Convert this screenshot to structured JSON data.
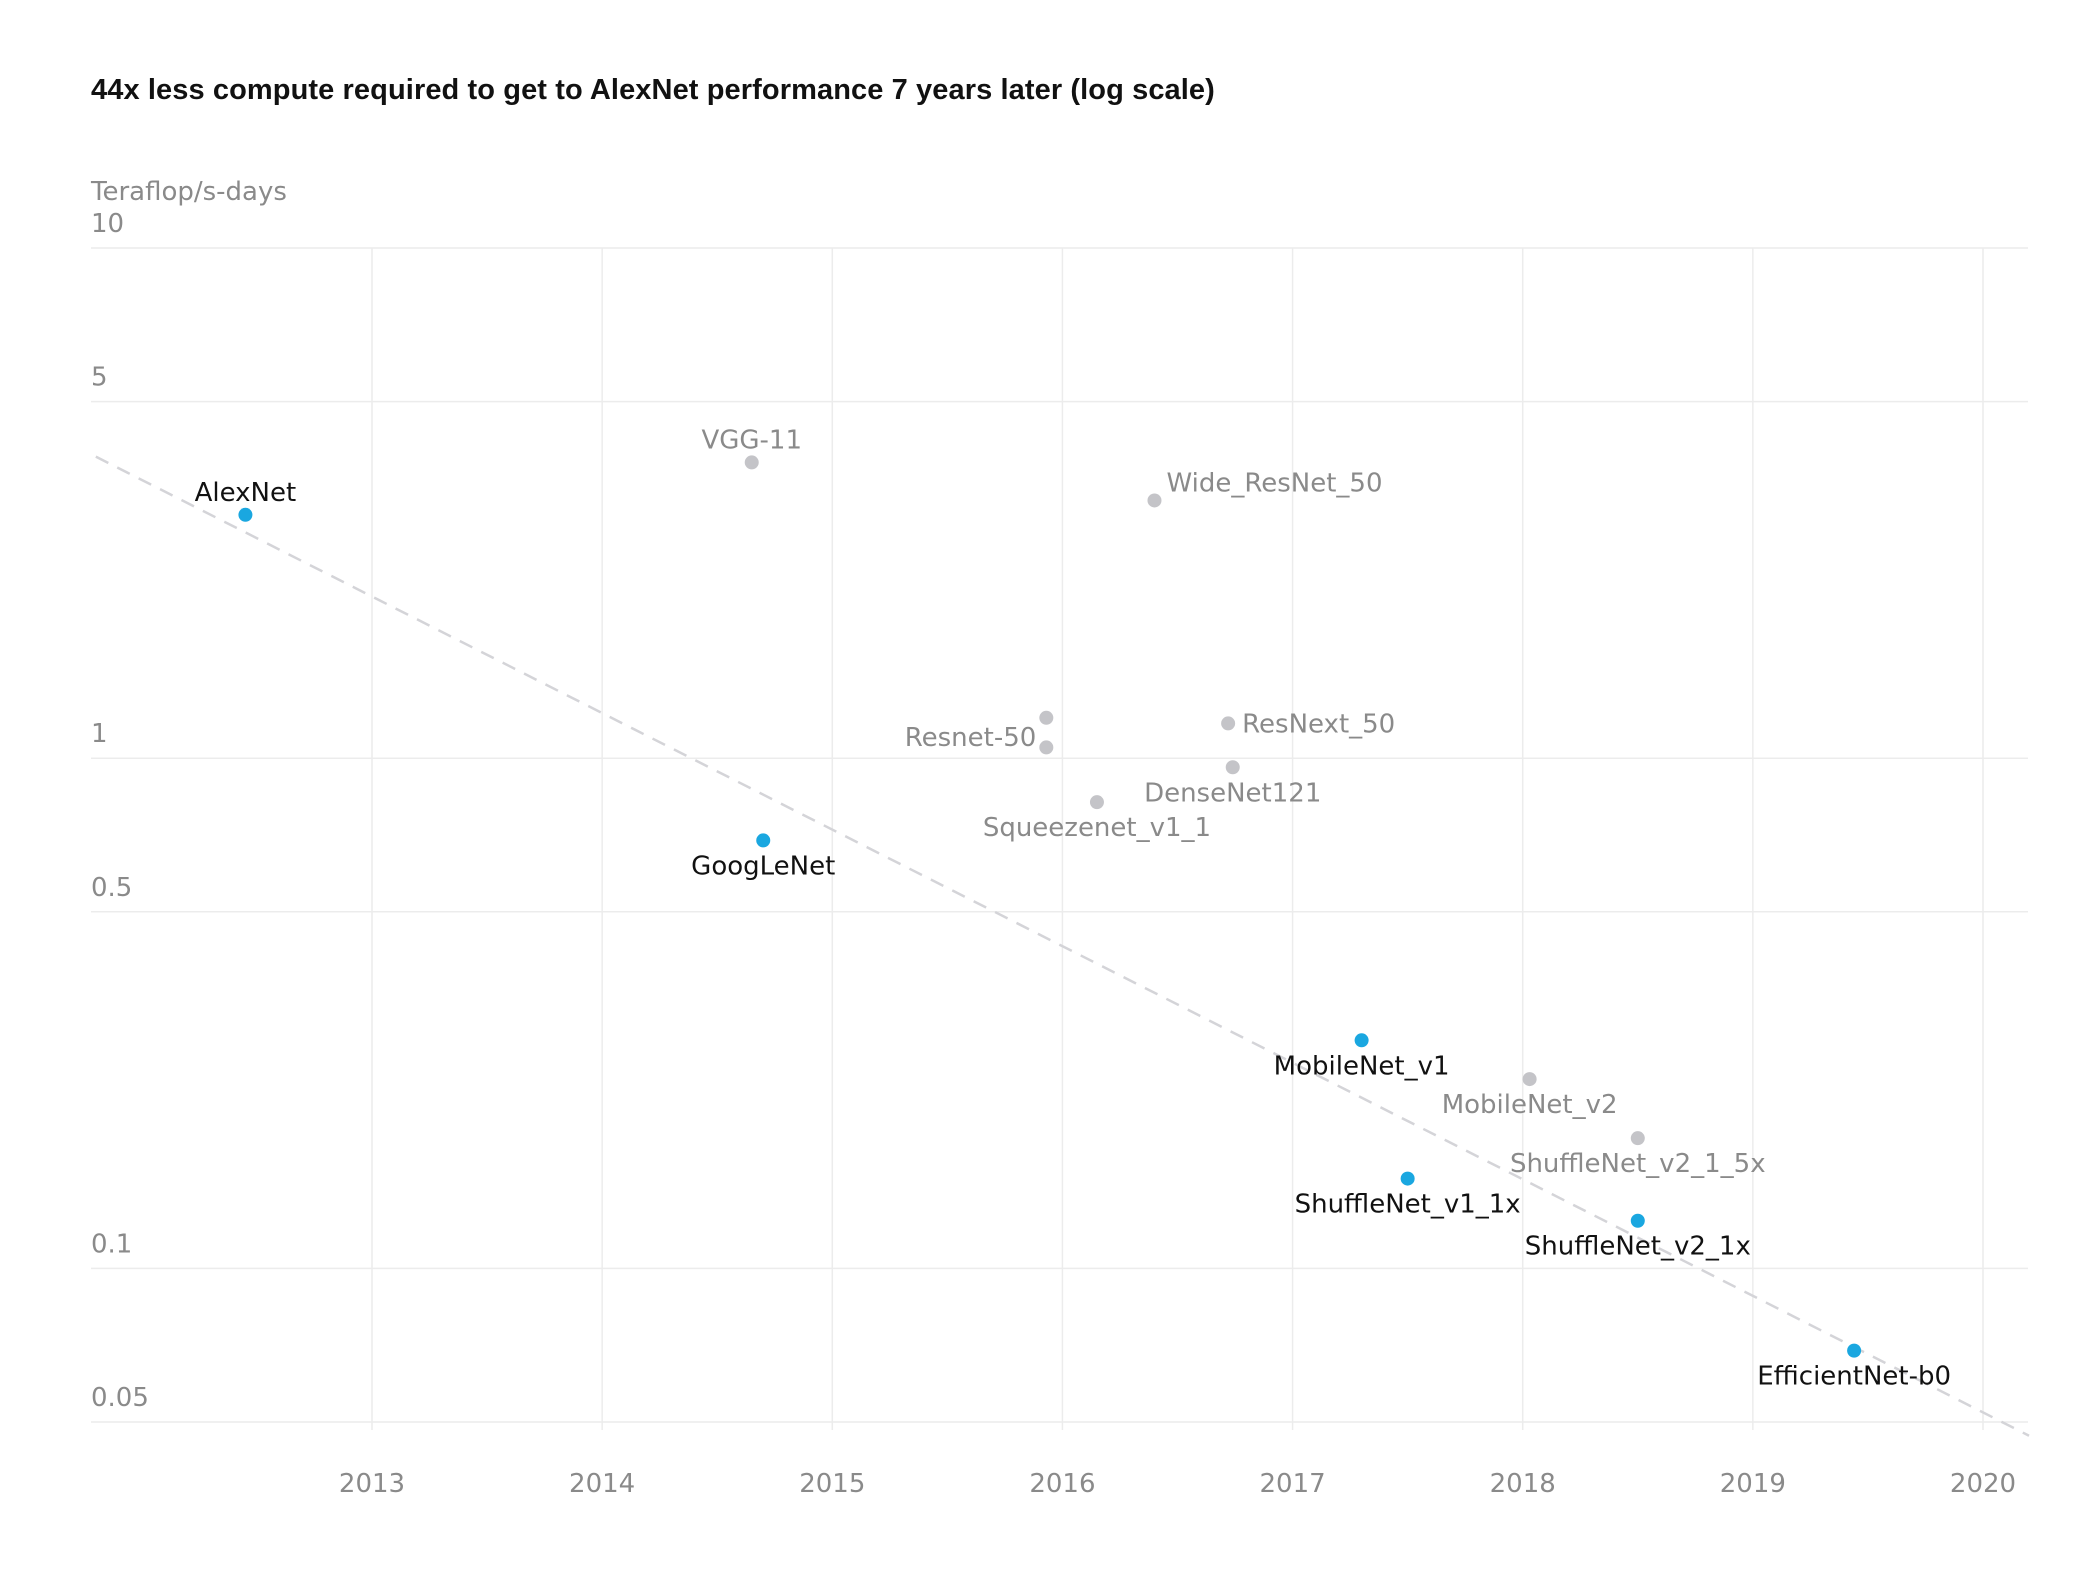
{
  "chart_data": {
    "type": "scatter",
    "title": "44x less compute required to get to AlexNet performance 7 years later (log scale)",
    "ylabel": "Teraflop/s-days",
    "xlabel": "",
    "y_scale": "log",
    "ylim": [
      0.045,
      10
    ],
    "xlim": [
      2011.8,
      2020.25
    ],
    "x_ticks": [
      2013,
      2014,
      2015,
      2016,
      2017,
      2018,
      2019,
      2020
    ],
    "x_tick_labels": [
      "2013",
      "2014",
      "2015",
      "2016",
      "2017",
      "2018",
      "2019",
      "2020"
    ],
    "y_ticks": [
      0.05,
      0.1,
      0.5,
      1,
      5,
      10
    ],
    "y_tick_labels": [
      "0.05",
      "0.1",
      "0.5",
      "1",
      "5",
      "10"
    ],
    "grid": true,
    "colors": {
      "highlight": "#1aa7e0",
      "other": "#c4c4c8",
      "highlight_text": "#111111",
      "other_text": "#8a8a8a",
      "trend": "#d4d4d8",
      "grid": "#ececec"
    },
    "trend_line": {
      "style": "dashed",
      "from": [
        2011.8,
        3.9
      ],
      "to": [
        2020.2,
        0.047
      ]
    },
    "points": [
      {
        "name": "AlexNet",
        "x": 2012.45,
        "y": 3.0,
        "highlight": true,
        "label_pos": "above"
      },
      {
        "name": "VGG-11",
        "x": 2014.65,
        "y": 3.8,
        "highlight": false,
        "label_pos": "above"
      },
      {
        "name": "Wide_ResNet_50",
        "x": 2016.4,
        "y": 3.2,
        "highlight": false,
        "label_pos": "right-up"
      },
      {
        "name": "GoogLeNet",
        "x": 2014.7,
        "y": 0.69,
        "highlight": true,
        "label_pos": "below"
      },
      {
        "name": "Resnet-50",
        "x": 2015.93,
        "y": 1.2,
        "highlight": false,
        "label_pos": "left-down"
      },
      {
        "name": "",
        "x": 2015.93,
        "y": 1.05,
        "highlight": false,
        "label_pos": "none"
      },
      {
        "name": "ResNext_50",
        "x": 2016.72,
        "y": 1.17,
        "highlight": false,
        "label_pos": "right"
      },
      {
        "name": "DenseNet121",
        "x": 2016.74,
        "y": 0.96,
        "highlight": false,
        "label_pos": "below"
      },
      {
        "name": "Squeezenet_v1_1",
        "x": 2016.15,
        "y": 0.82,
        "highlight": false,
        "label_pos": "below"
      },
      {
        "name": "MobileNet_v1",
        "x": 2017.3,
        "y": 0.28,
        "highlight": true,
        "label_pos": "below"
      },
      {
        "name": "MobileNet_v2",
        "x": 2018.03,
        "y": 0.235,
        "highlight": false,
        "label_pos": "below"
      },
      {
        "name": "ShuffleNet_v2_1_5x",
        "x": 2018.5,
        "y": 0.18,
        "highlight": false,
        "label_pos": "below"
      },
      {
        "name": "ShuffleNet_v1_1x",
        "x": 2017.5,
        "y": 0.15,
        "highlight": true,
        "label_pos": "below"
      },
      {
        "name": "ShuffleNet_v2_1x",
        "x": 2018.5,
        "y": 0.124,
        "highlight": true,
        "label_pos": "below"
      },
      {
        "name": "EfficientNet-b0",
        "x": 2019.44,
        "y": 0.069,
        "highlight": true,
        "label_pos": "below"
      }
    ]
  }
}
